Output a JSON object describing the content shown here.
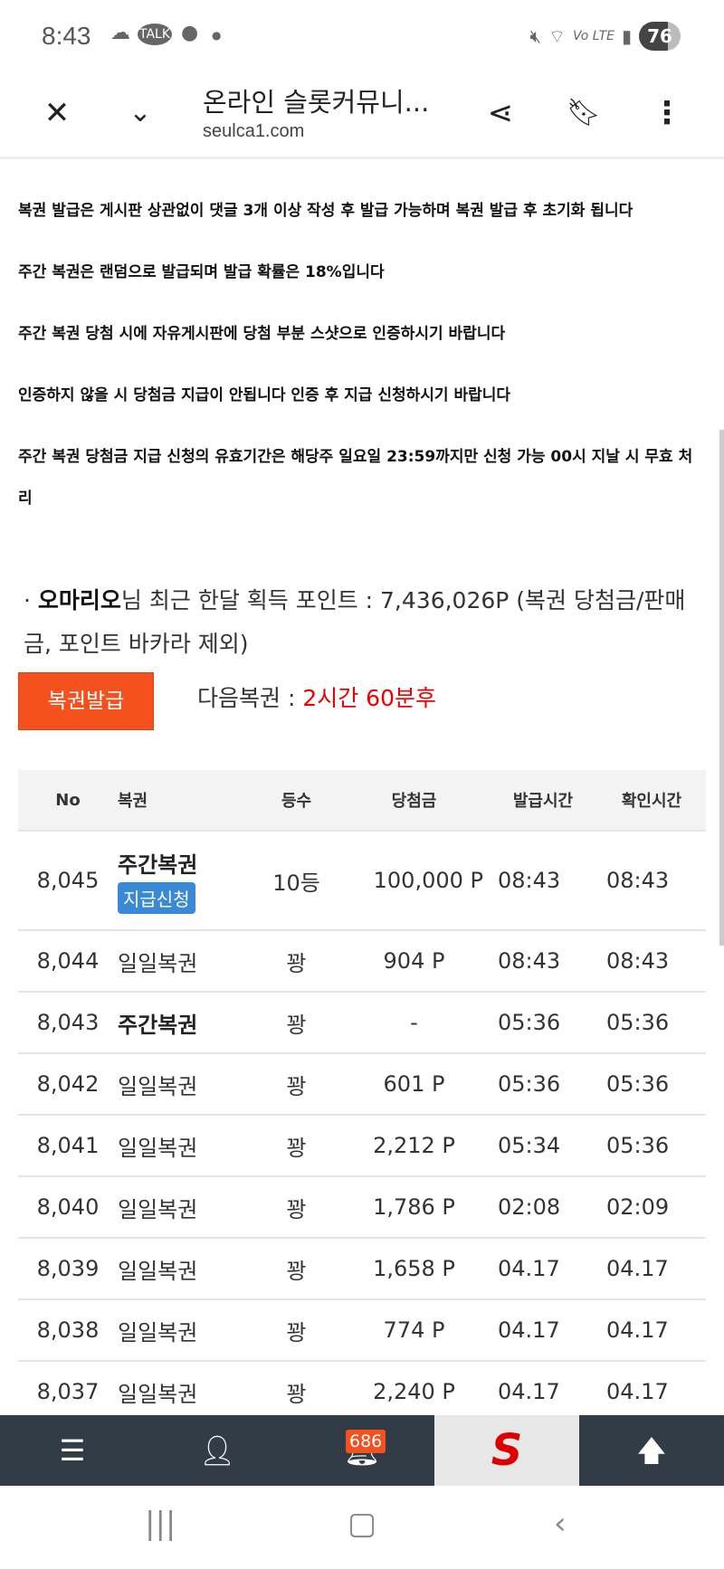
{
  "status_bar": {
    "time": "8:43",
    "battery": "76",
    "network": "Vo LTE"
  },
  "toolbar": {
    "title": "온라인 슬롯커뮤니...",
    "url": "seulca1.com"
  },
  "notices": [
    "복권 발급은 게시판 상관없이 댓글 3개 이상 작성 후 발급 가능하며 복권 발급 후 초기화 됩니다",
    "주간 복권은 랜덤으로 발급되며 발급 확률은 18%입니다",
    "주간 복권 당첨 시에 자유게시판에 당첨 부분 스샷으로 인증하시기 바랍니다",
    "인증하지 않을 시 당첨금 지급이 안됩니다 인증 후 지급 신청하시기 바랍니다",
    "주간 복권 당첨금 지급 신청의 유효기간은 해당주 일요일 23:59까지만 신청 가능 00시 지날 시 무효 처리"
  ],
  "points": {
    "prefix": "· ",
    "user": "오마리오",
    "text": "님 최근 한달 획득 포인트 : 7,436,026P (복권 당첨금/판매금, 포인트 바카라 제외)"
  },
  "issue_button": "복권발급",
  "next_lottery": {
    "label": "다음복권 : ",
    "value": "2시간 60분후"
  },
  "table": {
    "headers": [
      "No",
      "복권",
      "등수",
      "당첨금",
      "발급시간",
      "확인시간"
    ],
    "rows": [
      {
        "no": "8,045",
        "type": "주간복권",
        "weekly": true,
        "action": "지급신청",
        "rank": "10등",
        "prize": "100,000 P",
        "issued": "08:43",
        "checked": "08:43"
      },
      {
        "no": "8,044",
        "type": "일일복권",
        "rank": "꽝",
        "prize": "904 P",
        "issued": "08:43",
        "checked": "08:43"
      },
      {
        "no": "8,043",
        "type": "주간복권",
        "weekly": true,
        "rank": "꽝",
        "prize": "-",
        "issued": "05:36",
        "checked": "05:36"
      },
      {
        "no": "8,042",
        "type": "일일복권",
        "rank": "꽝",
        "prize": "601 P",
        "issued": "05:36",
        "checked": "05:36"
      },
      {
        "no": "8,041",
        "type": "일일복권",
        "rank": "꽝",
        "prize": "2,212 P",
        "issued": "05:34",
        "checked": "05:36"
      },
      {
        "no": "8,040",
        "type": "일일복권",
        "rank": "꽝",
        "prize": "1,786 P",
        "issued": "02:08",
        "checked": "02:09"
      },
      {
        "no": "8,039",
        "type": "일일복권",
        "rank": "꽝",
        "prize": "1,658 P",
        "issued": "04.17",
        "checked": "04.17"
      },
      {
        "no": "8,038",
        "type": "일일복권",
        "rank": "꽝",
        "prize": "774 P",
        "issued": "04.17",
        "checked": "04.17"
      },
      {
        "no": "8,037",
        "type": "일일복권",
        "rank": "꽝",
        "prize": "2,240 P",
        "issued": "04.17",
        "checked": "04.17"
      }
    ]
  },
  "bottom_nav": {
    "notification_count": "686",
    "logo": "S"
  },
  "colors": {
    "accent": "#f4511e",
    "apply": "#3a89d6",
    "nav": "#323c47",
    "countdown": "#ee0000"
  }
}
